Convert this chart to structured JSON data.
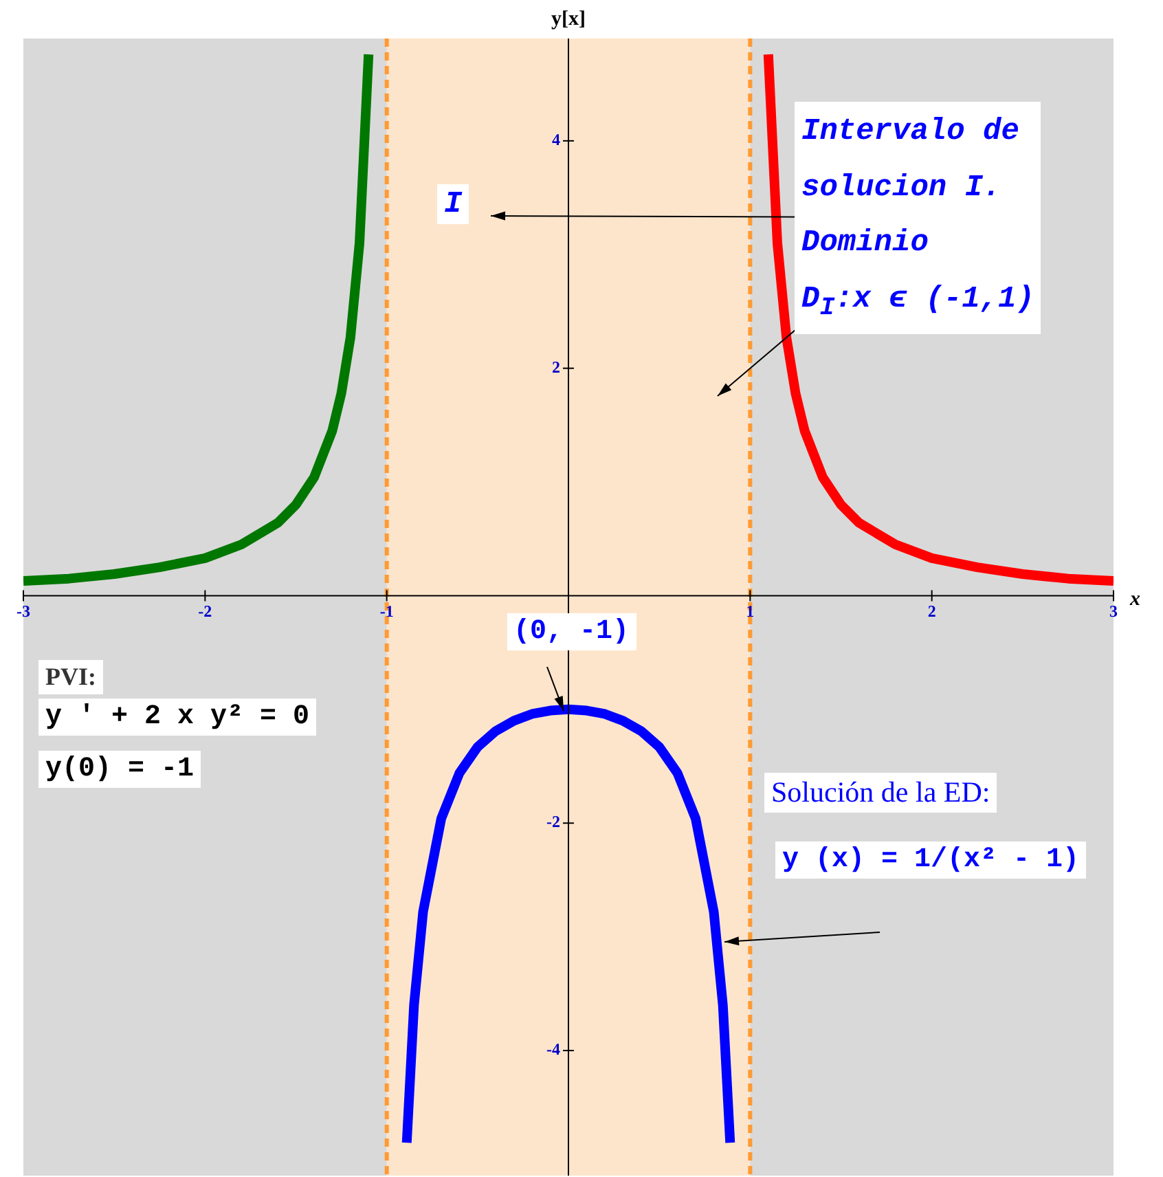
{
  "chart_data": {
    "type": "line",
    "xlabel": "x",
    "ylabel": "y[x]",
    "xlim": [
      -3,
      3
    ],
    "ylim": [
      -5.1,
      4.9
    ],
    "xticks": [
      -3,
      -2,
      -1,
      1,
      2,
      3
    ],
    "yticks": [
      -4,
      -2,
      2,
      4
    ],
    "legend": false,
    "marker": "none",
    "line_style": "solid",
    "series": [
      {
        "color": "#007700",
        "x": [
          -3,
          -2.75,
          -2.5,
          -2.25,
          -2,
          -1.8,
          -1.6,
          -1.5,
          -1.4,
          -1.3,
          -1.25,
          -1.2,
          -1.15,
          -1.1
        ],
        "values": [
          0.13,
          0.15,
          0.19,
          0.25,
          0.33,
          0.45,
          0.64,
          0.8,
          1.04,
          1.45,
          1.78,
          2.27,
          3.1,
          4.76
        ]
      },
      {
        "color": "#ff0000",
        "x": [
          1.1,
          1.15,
          1.2,
          1.25,
          1.3,
          1.4,
          1.5,
          1.6,
          1.8,
          2,
          2.25,
          2.5,
          2.75,
          3
        ],
        "values": [
          4.76,
          3.1,
          2.27,
          1.78,
          1.45,
          1.04,
          0.8,
          0.64,
          0.45,
          0.33,
          0.25,
          0.19,
          0.15,
          0.13
        ]
      },
      {
        "color": "#0000ff",
        "x": [
          -0.89,
          -0.85,
          -0.8,
          -0.7,
          -0.6,
          -0.5,
          -0.4,
          -0.3,
          -0.2,
          -0.1,
          0,
          0.1,
          0.2,
          0.3,
          0.4,
          0.5,
          0.6,
          0.7,
          0.8,
          0.85,
          0.89
        ],
        "values": [
          -4.81,
          -3.6,
          -2.78,
          -1.96,
          -1.56,
          -1.33,
          -1.19,
          -1.1,
          -1.04,
          -1.01,
          -1,
          -1.01,
          -1.04,
          -1.1,
          -1.19,
          -1.33,
          -1.56,
          -1.96,
          -2.78,
          -3.6,
          -4.81
        ]
      }
    ],
    "bands": [
      {
        "axis": "x",
        "from": -1,
        "to": 1,
        "color": "#fde5cc"
      }
    ],
    "ref_lines": [
      {
        "axis": "x",
        "value": -1,
        "color": "#ff9a33",
        "line_style": "dashed"
      },
      {
        "axis": "x",
        "value": 1,
        "color": "#ff9a33",
        "line_style": "dashed"
      }
    ],
    "annotations": [
      "Intervalo de\nsolucion I.\nDominio\nD$_{I}$:x ϵ (-1,1)",
      "I",
      {
        "text": "(0, -1)",
        "x": 0,
        "y": -1
      },
      "PVI:",
      "y ' + 2 x y² = 0",
      "y(0) = -1",
      "Solución de la ED:",
      "y (x) = 1/(x² - 1)"
    ]
  }
}
